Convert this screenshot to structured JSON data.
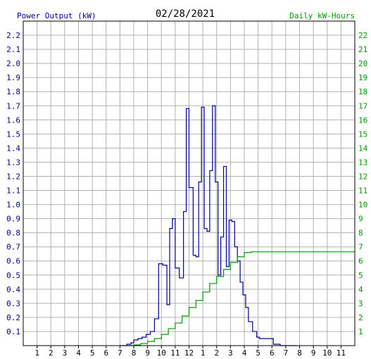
{
  "chart_data": {
    "type": "line",
    "title": "02/28/2021",
    "left_axis_label": "Power Output (kW)",
    "right_axis_label": "Daily kW-Hours",
    "x_ticks": [
      "1",
      "2",
      "3",
      "4",
      "5",
      "6",
      "7",
      "8",
      "9",
      "10",
      "11",
      "12",
      "1",
      "2",
      "3",
      "4",
      "5",
      "6",
      "7",
      "8",
      "9",
      "10",
      "11"
    ],
    "y_left_ticks": [
      "0.1",
      "0.2",
      "0.3",
      "0.4",
      "0.5",
      "0.6",
      "0.7",
      "0.8",
      "0.9",
      "1.0",
      "1.1",
      "1.2",
      "1.3",
      "1.4",
      "1.5",
      "1.6",
      "1.7",
      "1.8",
      "1.9",
      "2.0",
      "2.1",
      "2.2"
    ],
    "y_right_ticks": [
      "1",
      "2",
      "3",
      "4",
      "5",
      "6",
      "7",
      "8",
      "9",
      "10",
      "11",
      "12",
      "13",
      "14",
      "15",
      "16",
      "17",
      "18",
      "19",
      "20",
      "21",
      "22"
    ],
    "xlim": [
      0,
      24
    ],
    "ylim_left": [
      0,
      2.3
    ],
    "ylim_right": [
      0,
      23
    ],
    "grid": true,
    "series": [
      {
        "color": "#000099",
        "axis": "left",
        "x": [
          7.0,
          7.5,
          7.8,
          8.0,
          8.3,
          8.6,
          8.9,
          9.2,
          9.5,
          9.8,
          10.1,
          10.4,
          10.6,
          10.8,
          11.0,
          11.3,
          11.6,
          11.8,
          12.0,
          12.3,
          12.5,
          12.7,
          12.9,
          13.1,
          13.3,
          13.5,
          13.7,
          13.9,
          14.1,
          14.3,
          14.5,
          14.7,
          14.9,
          15.1,
          15.3,
          15.5,
          15.7,
          15.9,
          16.1,
          16.3,
          16.6,
          16.9,
          17.1,
          17.3,
          17.5,
          17.7,
          17.9,
          18.1,
          18.3,
          18.6,
          19.0,
          19.4,
          19.7,
          19.8
        ],
        "y": [
          0.0,
          0.01,
          0.02,
          0.04,
          0.05,
          0.06,
          0.08,
          0.1,
          0.19,
          0.58,
          0.57,
          0.29,
          0.83,
          0.9,
          0.55,
          0.48,
          0.95,
          1.68,
          1.12,
          0.64,
          0.63,
          1.16,
          1.69,
          0.83,
          0.81,
          1.24,
          1.7,
          1.16,
          0.5,
          0.77,
          1.27,
          0.56,
          0.89,
          0.88,
          0.7,
          0.6,
          0.45,
          0.36,
          0.27,
          0.17,
          0.1,
          0.06,
          0.05,
          0.05,
          0.05,
          0.05,
          0.05,
          0.01,
          0.01,
          0.0,
          0.0,
          0.0,
          0.0,
          0.0
        ]
      },
      {
        "color": "#009900",
        "axis": "right",
        "x": [
          7.5,
          8.0,
          8.5,
          9.0,
          9.5,
          10.0,
          10.5,
          11.0,
          11.5,
          12.0,
          12.5,
          13.0,
          13.5,
          14.0,
          14.5,
          15.0,
          15.5,
          16.0,
          16.5,
          17.0,
          17.5,
          18.0,
          18.5,
          19.0,
          20.0,
          21.0,
          22.0,
          23.0,
          24.0
        ],
        "y": [
          0.0,
          0.05,
          0.15,
          0.3,
          0.5,
          0.8,
          1.2,
          1.6,
          2.1,
          2.7,
          3.2,
          3.8,
          4.4,
          4.9,
          5.4,
          5.9,
          6.3,
          6.6,
          6.65,
          6.65,
          6.65,
          6.65,
          6.65,
          6.65,
          6.65,
          6.65,
          6.65,
          6.65,
          6.65
        ]
      }
    ]
  }
}
